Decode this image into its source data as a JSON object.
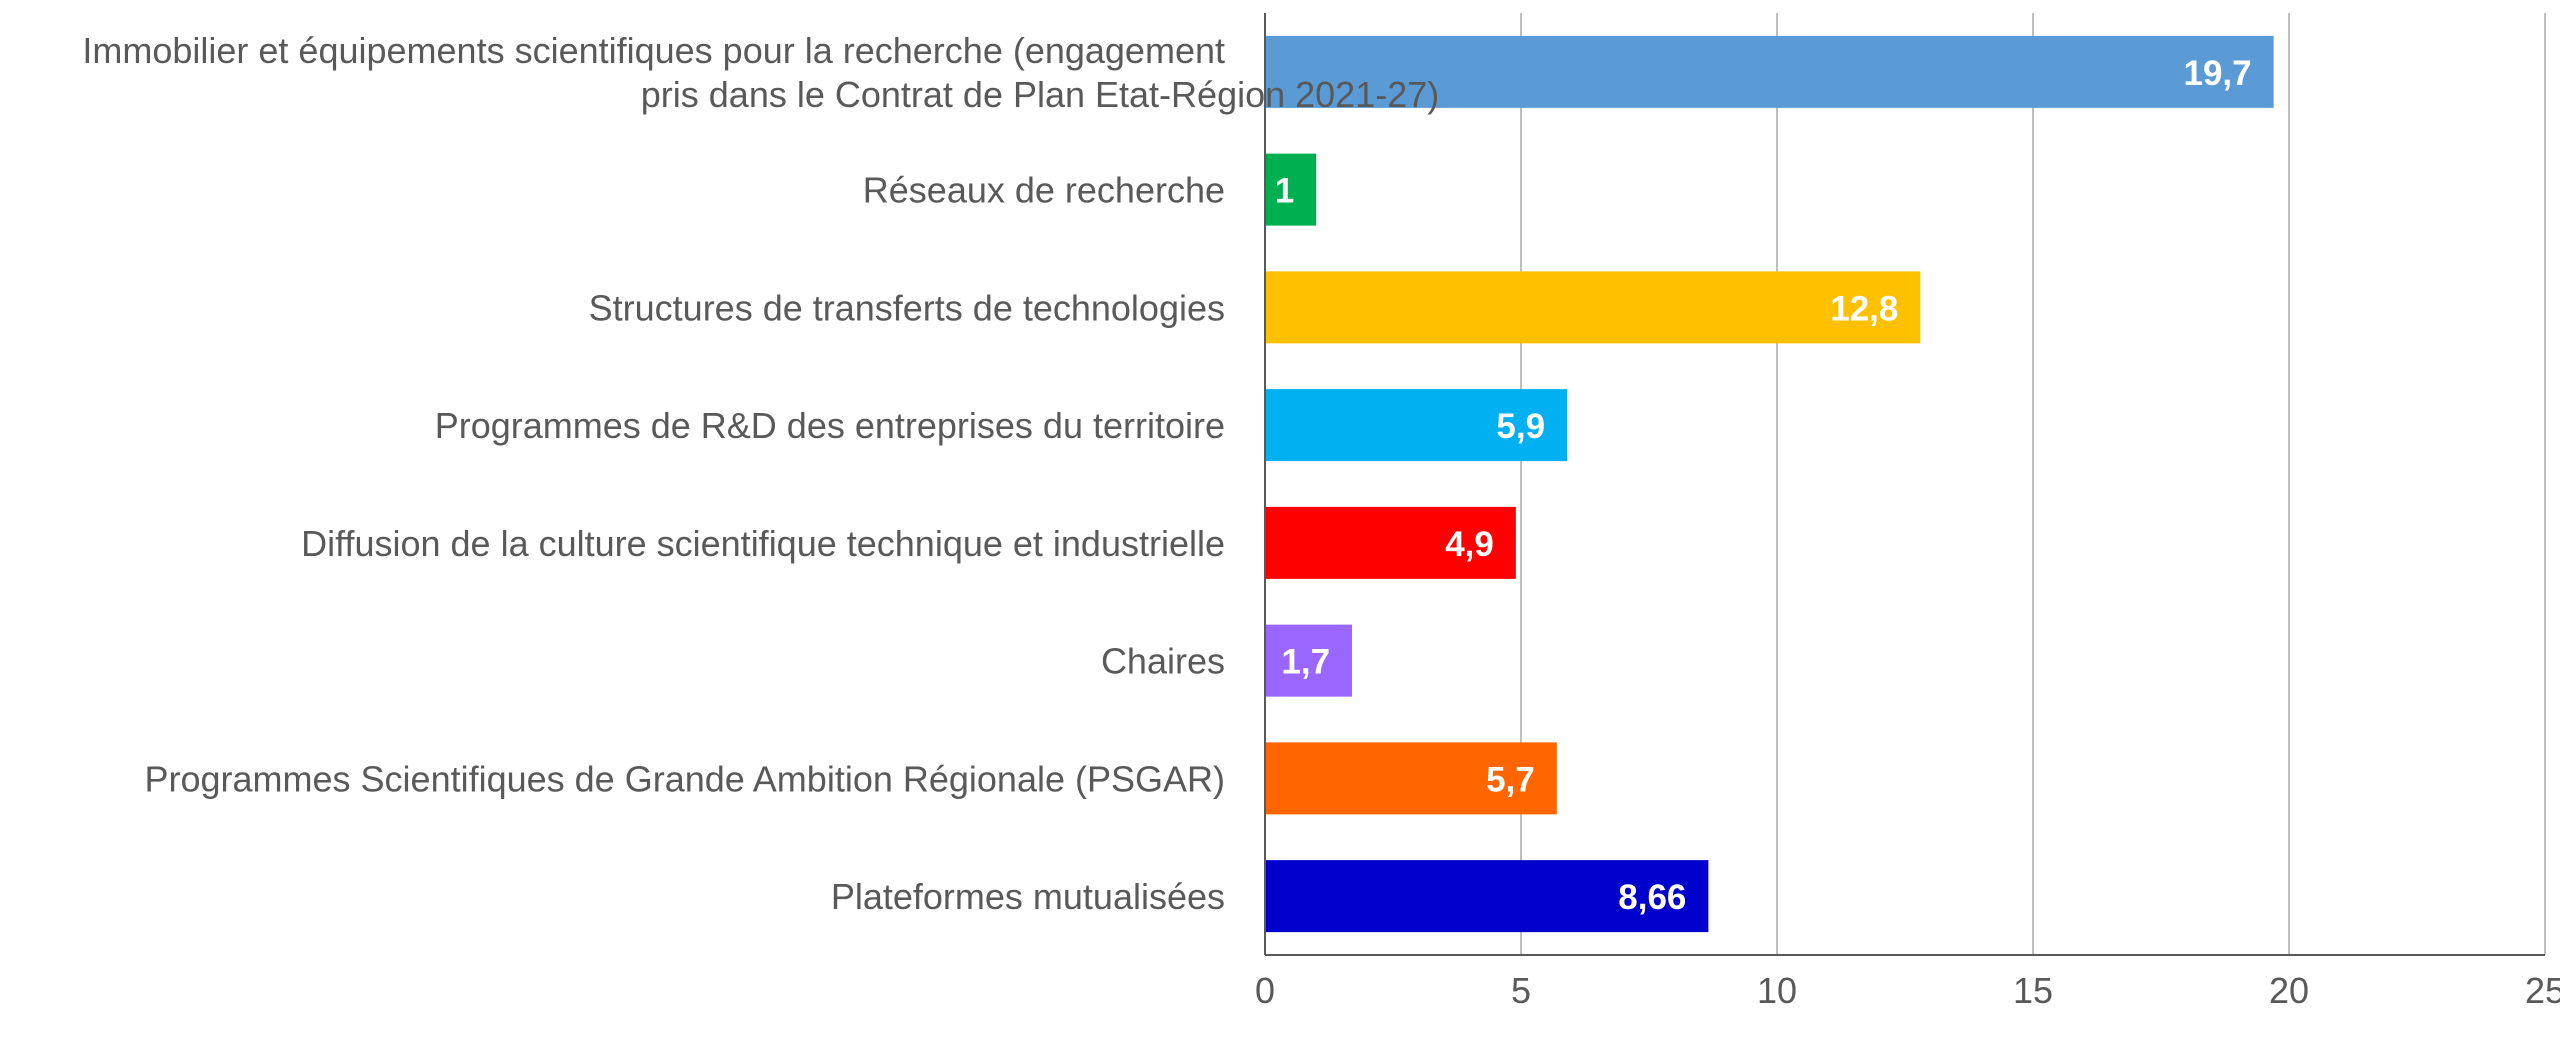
{
  "chart_data": {
    "type": "bar",
    "orientation": "horizontal",
    "title": "",
    "xlabel": "",
    "ylabel": "",
    "xlim": [
      0,
      25
    ],
    "ticks": [
      0,
      5,
      10,
      15,
      20,
      25
    ],
    "grid": true,
    "categories": [
      [
        "Immobilier et équipements scientifiques pour la recherche (engagement",
        "pris dans le Contrat de Plan Etat-Région 2021-27)"
      ],
      [
        "Réseaux de recherche"
      ],
      [
        "Structures de transferts de technologies"
      ],
      [
        "Programmes de R&D des entreprises du territoire"
      ],
      [
        "Diffusion de la culture scientifique technique et industrielle"
      ],
      [
        "Chaires"
      ],
      [
        "Programmes Scientifiques de Grande Ambition Régionale (PSGAR)"
      ],
      [
        "Plateformes mutualisées"
      ]
    ],
    "values": [
      19.7,
      1,
      12.8,
      5.9,
      4.9,
      1.7,
      5.7,
      8.66
    ],
    "value_labels": [
      "19,7",
      "1",
      "12,8",
      "5,9",
      "4,9",
      "1,7",
      "5,7",
      "8,66"
    ],
    "colors": [
      "#5b9bd5",
      "#00b050",
      "#ffc000",
      "#00b0f0",
      "#ff0000",
      "#9966ff",
      "#ff6600",
      "#0000cc"
    ]
  }
}
